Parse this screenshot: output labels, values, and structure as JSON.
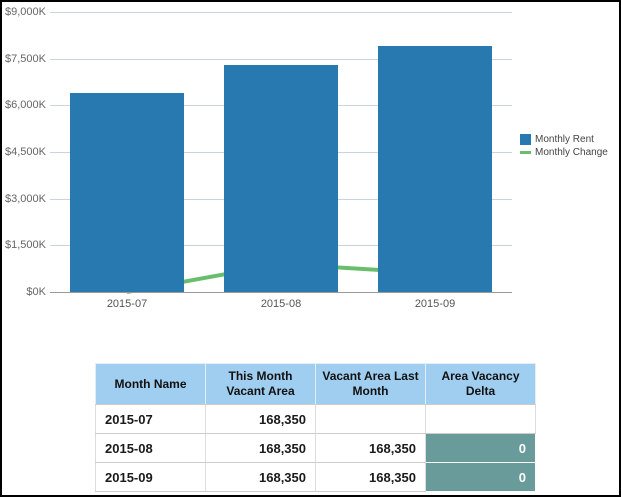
{
  "chart_data": {
    "type": "bar",
    "subtype": "combo-bar-line",
    "categories": [
      "2015-07",
      "2015-08",
      "2015-09"
    ],
    "series": [
      {
        "name": "Monthly Rent",
        "mark": "bar",
        "color": "#2779b0",
        "values": [
          6400,
          7300,
          7900
        ]
      },
      {
        "name": "Monthly Change",
        "mark": "line",
        "color": "#69be6e",
        "values": [
          0,
          900,
          600
        ]
      }
    ],
    "unit": "$K",
    "ylim": [
      0,
      9000
    ],
    "y_tick_values": [
      9000,
      7500,
      6000,
      4500,
      3000,
      1500,
      0
    ],
    "y_tick_labels": [
      "$9,000K",
      "$7,500K",
      "$6,000K",
      "$4,500K",
      "$3,000K",
      "$1,500K",
      "$0K"
    ],
    "grid": true,
    "legend_position": "right"
  },
  "legend": {
    "items": [
      {
        "label": "Monthly Rent",
        "marker": "square",
        "color": "#2779b0"
      },
      {
        "label": "Monthly Change",
        "marker": "line",
        "color": "#69be6e"
      }
    ]
  },
  "table": {
    "headers": [
      "Month Name",
      "This Month Vacant Area",
      "Vacant Area Last Month",
      "Area Vacancy Delta"
    ],
    "rows": [
      [
        "2015-07",
        "168,350",
        "",
        ""
      ],
      [
        "2015-08",
        "168,350",
        "168,350",
        "0"
      ],
      [
        "2015-09",
        "168,350",
        "168,350",
        "0"
      ]
    ],
    "colors": {
      "header_bg": "#a0cef0",
      "delta_bg": "#699b9b",
      "bar_blue": "#2779b0",
      "line_green": "#69be6e"
    }
  }
}
